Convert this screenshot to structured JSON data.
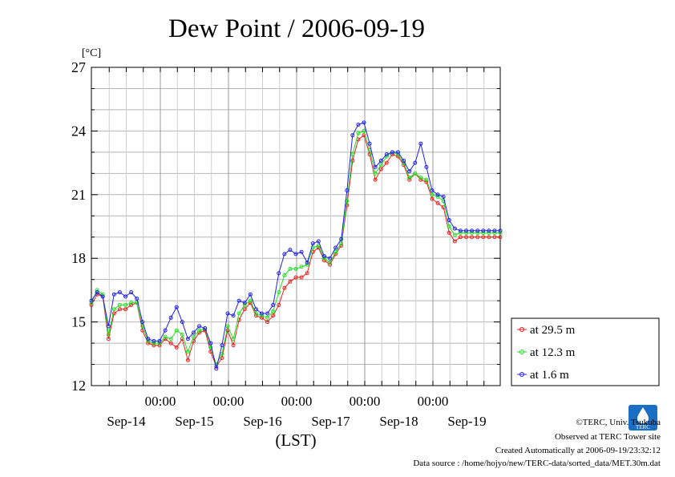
{
  "chart_data": {
    "type": "line",
    "title": "Dew Point / 2006-09-19",
    "ylabel": "[°C]",
    "xlabel": "(LST)",
    "ylim": [
      12,
      27
    ],
    "yticks": [
      12,
      15,
      18,
      21,
      24,
      27
    ],
    "x_time_labels": [
      "00:00",
      "00:00",
      "00:00",
      "00:00",
      "00:00"
    ],
    "x_date_labels": [
      "Sep-14",
      "Sep-15",
      "Sep-16",
      "Sep-17",
      "Sep-18",
      "Sep-19"
    ],
    "grid": true,
    "legend_position": "right",
    "x_hours": [
      0,
      2,
      4,
      6,
      8,
      10,
      12,
      14,
      16,
      18,
      20,
      22,
      24,
      26,
      28,
      30,
      32,
      34,
      36,
      38,
      40,
      42,
      44,
      46,
      48,
      50,
      52,
      54,
      56,
      58,
      60,
      62,
      64,
      66,
      68,
      70,
      72,
      74,
      76,
      78,
      80,
      82,
      84,
      86,
      88,
      90,
      92,
      94,
      96,
      98,
      100,
      102,
      104,
      106,
      108,
      110,
      112,
      114,
      116,
      118,
      120,
      122,
      124,
      126,
      128,
      130,
      132,
      134,
      136,
      138,
      140,
      142,
      144
    ],
    "series": [
      {
        "name": "at 29.5 m",
        "color": "#e8201c",
        "values": [
          15.8,
          16.3,
          16.2,
          14.2,
          15.4,
          15.6,
          15.6,
          15.8,
          15.9,
          14.6,
          14.0,
          13.9,
          13.9,
          14.2,
          14.0,
          13.8,
          14.2,
          13.2,
          14.1,
          14.5,
          14.6,
          13.6,
          12.9,
          13.3,
          14.6,
          13.9,
          15.1,
          15.6,
          15.9,
          15.3,
          15.2,
          15.0,
          15.3,
          15.8,
          16.6,
          16.9,
          17.1,
          17.1,
          17.3,
          18.3,
          18.5,
          17.9,
          17.7,
          18.2,
          18.6,
          20.5,
          22.6,
          23.6,
          23.8,
          22.9,
          21.7,
          22.2,
          22.5,
          22.9,
          22.8,
          22.4,
          21.7,
          22.0,
          21.7,
          21.6,
          20.8,
          20.6,
          20.4,
          19.2,
          18.8,
          19.0,
          19.0,
          19.0,
          19.0,
          19.0,
          19.0,
          19.0,
          19.0
        ]
      },
      {
        "name": "at 12.3 m",
        "color": "#20e020",
        "values": [
          15.9,
          16.5,
          16.3,
          14.4,
          15.6,
          15.8,
          15.8,
          15.9,
          15.9,
          14.8,
          14.1,
          14.0,
          14.0,
          14.3,
          14.2,
          14.6,
          14.4,
          13.6,
          14.3,
          14.6,
          14.7,
          13.8,
          13.0,
          13.5,
          14.8,
          14.2,
          15.4,
          15.8,
          16.0,
          15.4,
          15.3,
          15.2,
          15.5,
          16.4,
          17.2,
          17.5,
          17.5,
          17.6,
          17.7,
          18.5,
          18.6,
          18.0,
          17.8,
          18.3,
          18.7,
          20.7,
          22.9,
          23.9,
          24.0,
          23.1,
          22.0,
          22.4,
          22.8,
          23.0,
          22.9,
          22.5,
          21.8,
          22.0,
          21.8,
          21.7,
          21.0,
          20.9,
          20.7,
          19.5,
          19.1,
          19.2,
          19.2,
          19.2,
          19.2,
          19.2,
          19.2,
          19.2,
          19.2
        ]
      },
      {
        "name": "at 1.6 m",
        "color": "#2020f0",
        "values": [
          16.0,
          16.4,
          16.2,
          14.8,
          16.3,
          16.4,
          16.2,
          16.4,
          16.1,
          15.0,
          14.2,
          14.1,
          14.1,
          14.6,
          15.2,
          15.7,
          15.0,
          14.2,
          14.5,
          14.8,
          14.7,
          14.0,
          12.8,
          13.9,
          15.4,
          15.3,
          16.0,
          15.9,
          16.3,
          15.6,
          15.4,
          15.4,
          15.8,
          17.3,
          18.2,
          18.4,
          18.2,
          18.3,
          17.8,
          18.7,
          18.8,
          18.1,
          18.0,
          18.5,
          18.9,
          21.2,
          23.8,
          24.3,
          24.4,
          23.4,
          22.3,
          22.6,
          22.9,
          23.0,
          23.0,
          22.6,
          22.1,
          22.5,
          23.4,
          22.3,
          21.2,
          21.0,
          20.9,
          19.8,
          19.4,
          19.3,
          19.3,
          19.3,
          19.3,
          19.3,
          19.3,
          19.3,
          19.3
        ]
      }
    ]
  },
  "footer": {
    "copyright": "©TERC, Univ. Tsukuba",
    "observed": "Observed at TERC Tower site",
    "created": "Created Automatically at 2006-09-19/23:32:12",
    "source": "Data source : /home/hojyo/new/TERC-data/sorted_data/MET.30m.dat",
    "logo_text": "TERC"
  }
}
